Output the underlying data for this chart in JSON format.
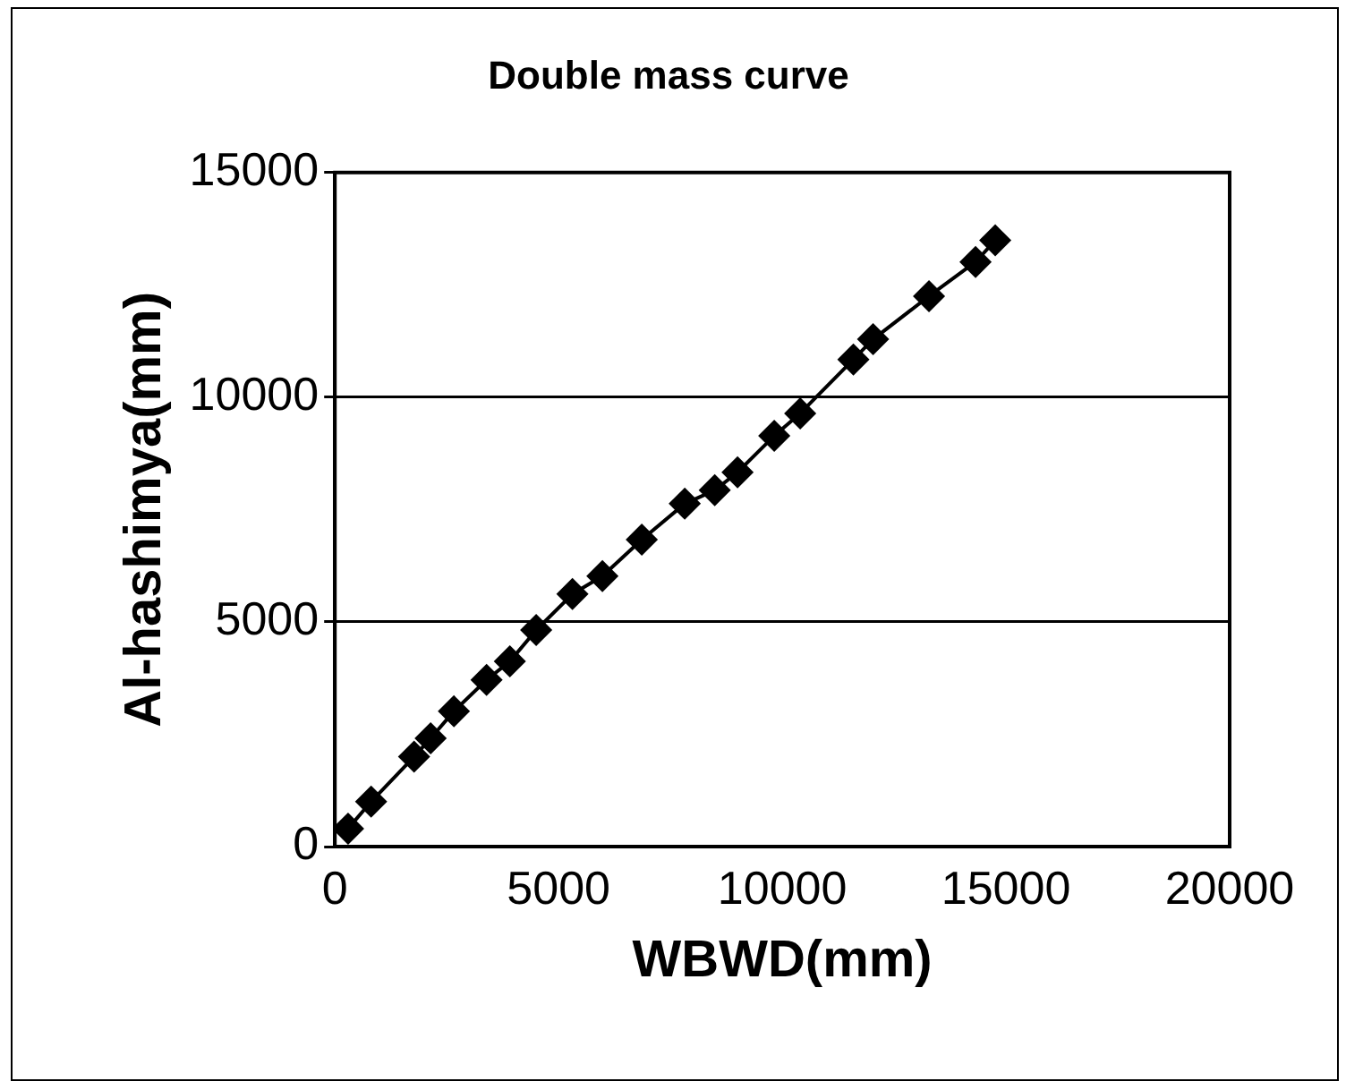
{
  "chart_data": {
    "type": "line",
    "title": "Double mass curve",
    "xlabel": "WBWD(mm)",
    "ylabel": "Al-hashimya(mm)",
    "x": [
      295,
      810,
      1770,
      2140,
      2660,
      3390,
      3910,
      4500,
      5310,
      5980,
      6860,
      7820,
      8490,
      9000,
      9820,
      10400,
      11590,
      12030,
      13280,
      14320,
      14760
    ],
    "series": [
      {
        "color": "#000000",
        "values": [
          400,
          1000,
          2000,
          2410,
          3010,
          3710,
          4120,
          4820,
          5620,
          6020,
          6830,
          7630,
          7930,
          8330,
          9140,
          9640,
          10840,
          11290,
          12250,
          13010,
          13490
        ]
      }
    ],
    "xlim": [
      0,
      20000
    ],
    "xticks": [
      0,
      5000,
      10000,
      15000,
      20000
    ],
    "ylim": [
      0,
      15000
    ],
    "yticks": [
      0,
      5000,
      10000,
      15000
    ],
    "grid": "y",
    "legend": false,
    "marker": "diamond",
    "line_style": "solid"
  }
}
